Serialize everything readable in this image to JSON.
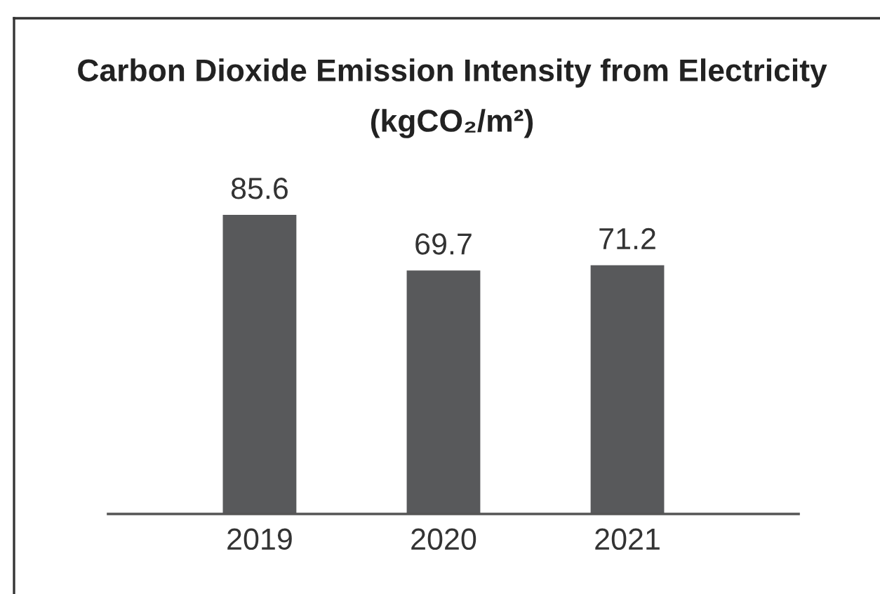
{
  "chart_data": {
    "type": "bar",
    "title": "Carbon Dioxide Emission Intensity from Electricity",
    "subtitle": "(kgCO₂/m²)",
    "categories": [
      "2019",
      "2020",
      "2021"
    ],
    "values": [
      85.6,
      69.7,
      71.2
    ],
    "color": "#58595b",
    "data_labels": true,
    "tick_labels": "x"
  }
}
